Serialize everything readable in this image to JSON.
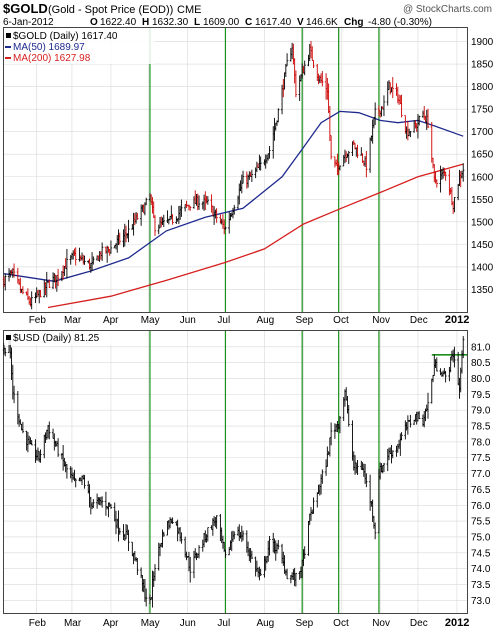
{
  "header": {
    "symbol": "$GOLD",
    "description": "(Gold - Spot Price (EOD))",
    "exchange": "CME",
    "watermark": "@ StockCharts.com",
    "date": "6-Jan-2012",
    "ohlc": [
      {
        "label": "O",
        "value": "1622.40"
      },
      {
        "label": "H",
        "value": "1632.30"
      },
      {
        "label": "L",
        "value": "1609.00"
      },
      {
        "label": "C",
        "value": "1617.40"
      },
      {
        "label": "V",
        "value": "146.6K"
      },
      {
        "label": "Chg",
        "value": "-4.80 (-0.30%)"
      }
    ]
  },
  "colors": {
    "ma50": "#1f2a8f",
    "ma200": "#d62020",
    "up_bar": "#000000",
    "down_bar": "#cc0000",
    "vline": "#1a8f1a",
    "grid": "#d9d9d9"
  },
  "chart_data": [
    {
      "type": "line",
      "style": "ohlc-bars",
      "legend": {
        "price": "$GOLD (Daily) 1617.40",
        "ma50": "MA(50) 1689.97",
        "ma200": "MA(200) 1627.98"
      },
      "month_labels": [
        "Feb",
        "Mar",
        "Apr",
        "May",
        "Jun",
        "Jul",
        "Aug",
        "Sep",
        "Oct",
        "Nov",
        "Dec",
        "2012"
      ],
      "y_ticks": [
        "1900",
        "1850",
        "1800",
        "1750",
        "1700",
        "1650",
        "1600",
        "1550",
        "1500",
        "1450",
        "1400",
        "1350"
      ],
      "ylim": [
        1300,
        1930
      ],
      "x_range": [
        "2011-01-06",
        "2012-01-09"
      ],
      "vertical_markers": [
        "2011-05-02",
        "2011-07-01",
        "2011-08-31",
        "2011-09-29",
        "2011-10-31"
      ],
      "series": [
        {
          "name": "$GOLD",
          "points": [
            [
              "2011-01-06",
              1372
            ],
            [
              "2011-01-13",
              1385
            ],
            [
              "2011-01-20",
              1345
            ],
            [
              "2011-01-27",
              1320
            ],
            [
              "2011-02-03",
              1340
            ],
            [
              "2011-02-10",
              1362
            ],
            [
              "2011-02-17",
              1378
            ],
            [
              "2011-02-24",
              1405
            ],
            [
              "2011-03-03",
              1425
            ],
            [
              "2011-03-10",
              1412
            ],
            [
              "2011-03-17",
              1403
            ],
            [
              "2011-03-24",
              1432
            ],
            [
              "2011-03-31",
              1438
            ],
            [
              "2011-04-07",
              1458
            ],
            [
              "2011-04-14",
              1475
            ],
            [
              "2011-04-21",
              1505
            ],
            [
              "2011-04-28",
              1535
            ],
            [
              "2011-05-02",
              1555
            ],
            [
              "2011-05-06",
              1490
            ],
            [
              "2011-05-13",
              1495
            ],
            [
              "2011-05-20",
              1505
            ],
            [
              "2011-05-27",
              1525
            ],
            [
              "2011-06-03",
              1540
            ],
            [
              "2011-06-10",
              1545
            ],
            [
              "2011-06-17",
              1540
            ],
            [
              "2011-06-24",
              1510
            ],
            [
              "2011-07-01",
              1485
            ],
            [
              "2011-07-08",
              1540
            ],
            [
              "2011-07-15",
              1590
            ],
            [
              "2011-07-22",
              1600
            ],
            [
              "2011-07-29",
              1625
            ],
            [
              "2011-08-05",
              1660
            ],
            [
              "2011-08-12",
              1745
            ],
            [
              "2011-08-19",
              1850
            ],
            [
              "2011-08-23",
              1890
            ],
            [
              "2011-08-26",
              1790
            ],
            [
              "2011-08-31",
              1830
            ],
            [
              "2011-09-06",
              1880
            ],
            [
              "2011-09-13",
              1820
            ],
            [
              "2011-09-20",
              1795
            ],
            [
              "2011-09-23",
              1640
            ],
            [
              "2011-09-27",
              1620
            ],
            [
              "2011-10-04",
              1650
            ],
            [
              "2011-10-11",
              1670
            ],
            [
              "2011-10-18",
              1640
            ],
            [
              "2011-10-21",
              1625
            ],
            [
              "2011-10-28",
              1740
            ],
            [
              "2011-11-04",
              1760
            ],
            [
              "2011-11-08",
              1800
            ],
            [
              "2011-11-15",
              1780
            ],
            [
              "2011-11-22",
              1700
            ],
            [
              "2011-11-29",
              1710
            ],
            [
              "2011-12-05",
              1740
            ],
            [
              "2011-12-09",
              1720
            ],
            [
              "2011-12-14",
              1590
            ],
            [
              "2011-12-19",
              1600
            ],
            [
              "2011-12-23",
              1610
            ],
            [
              "2011-12-29",
              1540
            ],
            [
              "2012-01-03",
              1600
            ],
            [
              "2012-01-06",
              1617.4
            ]
          ]
        },
        {
          "name": "MA(50)",
          "points": [
            [
              "2011-01-06",
              1385
            ],
            [
              "2011-02-15",
              1368
            ],
            [
              "2011-03-15",
              1390
            ],
            [
              "2011-04-15",
              1420
            ],
            [
              "2011-05-15",
              1480
            ],
            [
              "2011-06-15",
              1510
            ],
            [
              "2011-07-15",
              1530
            ],
            [
              "2011-08-15",
              1600
            ],
            [
              "2011-09-01",
              1665
            ],
            [
              "2011-09-15",
              1720
            ],
            [
              "2011-09-30",
              1745
            ],
            [
              "2011-10-15",
              1742
            ],
            [
              "2011-11-01",
              1725
            ],
            [
              "2011-11-15",
              1720
            ],
            [
              "2011-12-01",
              1725
            ],
            [
              "2011-12-15",
              1712
            ],
            [
              "2012-01-06",
              1690
            ]
          ]
        },
        {
          "name": "MA(200)",
          "points": [
            [
              "2011-02-10",
              1310
            ],
            [
              "2011-04-01",
              1335
            ],
            [
              "2011-05-15",
              1370
            ],
            [
              "2011-07-01",
              1410
            ],
            [
              "2011-08-01",
              1440
            ],
            [
              "2011-09-01",
              1495
            ],
            [
              "2011-10-01",
              1530
            ],
            [
              "2011-11-01",
              1565
            ],
            [
              "2011-12-01",
              1600
            ],
            [
              "2012-01-06",
              1628
            ]
          ]
        }
      ]
    },
    {
      "type": "line",
      "style": "ohlc-bars",
      "legend": {
        "price": "$USD (Daily) 81.25"
      },
      "month_labels": [
        "Feb",
        "Mar",
        "Apr",
        "May",
        "Jun",
        "Jul",
        "Aug",
        "Sep",
        "Oct",
        "Nov",
        "Dec",
        "2012"
      ],
      "y_ticks": [
        "81.0",
        "80.5",
        "80.0",
        "79.5",
        "79.0",
        "78.5",
        "78.0",
        "77.5",
        "77.0",
        "76.5",
        "76.0",
        "75.5",
        "75.0",
        "74.5",
        "74.0",
        "73.5",
        "73.0"
      ],
      "ylim": [
        72.6,
        81.5
      ],
      "x_range": [
        "2011-01-06",
        "2012-01-09"
      ],
      "vertical_markers": [
        "2011-05-02",
        "2011-07-01",
        "2011-08-31",
        "2011-09-29",
        "2011-10-31"
      ],
      "horizontal_marker": {
        "x_start": "2011-12-12",
        "x_end": "2012-01-09",
        "value": 80.75
      },
      "series": [
        {
          "name": "$USD",
          "points": [
            [
              "2011-01-06",
              80.9
            ],
            [
              "2011-01-10",
              81.2
            ],
            [
              "2011-01-13",
              79.6
            ],
            [
              "2011-01-20",
              78.4
            ],
            [
              "2011-01-27",
              77.8
            ],
            [
              "2011-02-03",
              77.5
            ],
            [
              "2011-02-10",
              78.5
            ],
            [
              "2011-02-17",
              77.8
            ],
            [
              "2011-02-24",
              77.2
            ],
            [
              "2011-03-03",
              76.7
            ],
            [
              "2011-03-10",
              76.8
            ],
            [
              "2011-03-17",
              76.0
            ],
            [
              "2011-03-24",
              76.1
            ],
            [
              "2011-03-31",
              76.0
            ],
            [
              "2011-04-07",
              75.3
            ],
            [
              "2011-04-14",
              75.0
            ],
            [
              "2011-04-21",
              74.2
            ],
            [
              "2011-04-28",
              73.2
            ],
            [
              "2011-05-02",
              72.9
            ],
            [
              "2011-05-06",
              74.1
            ],
            [
              "2011-05-13",
              75.2
            ],
            [
              "2011-05-20",
              75.6
            ],
            [
              "2011-05-27",
              75.0
            ],
            [
              "2011-06-03",
              74.0
            ],
            [
              "2011-06-10",
              74.6
            ],
            [
              "2011-06-17",
              75.2
            ],
            [
              "2011-06-24",
              75.6
            ],
            [
              "2011-07-01",
              74.3
            ],
            [
              "2011-07-08",
              75.2
            ],
            [
              "2011-07-15",
              75.0
            ],
            [
              "2011-07-22",
              74.3
            ],
            [
              "2011-07-29",
              73.7
            ],
            [
              "2011-08-05",
              74.8
            ],
            [
              "2011-08-12",
              74.6
            ],
            [
              "2011-08-19",
              73.8
            ],
            [
              "2011-08-26",
              73.7
            ],
            [
              "2011-08-31",
              74.1
            ],
            [
              "2011-09-06",
              75.6
            ],
            [
              "2011-09-13",
              76.5
            ],
            [
              "2011-09-20",
              77.5
            ],
            [
              "2011-09-23",
              78.3
            ],
            [
              "2011-09-29",
              78.6
            ],
            [
              "2011-10-04",
              79.6
            ],
            [
              "2011-10-11",
              77.2
            ],
            [
              "2011-10-18",
              77.2
            ],
            [
              "2011-10-25",
              76.0
            ],
            [
              "2011-10-28",
              75.2
            ],
            [
              "2011-10-31",
              77.0
            ],
            [
              "2011-11-07",
              77.6
            ],
            [
              "2011-11-14",
              77.8
            ],
            [
              "2011-11-21",
              78.4
            ],
            [
              "2011-11-28",
              78.8
            ],
            [
              "2011-12-05",
              78.7
            ],
            [
              "2011-12-09",
              79.2
            ],
            [
              "2011-12-14",
              80.4
            ],
            [
              "2011-12-19",
              80.3
            ],
            [
              "2011-12-23",
              80.0
            ],
            [
              "2011-12-29",
              80.8
            ],
            [
              "2012-01-03",
              79.7
            ],
            [
              "2012-01-06",
              81.25
            ]
          ]
        }
      ]
    }
  ]
}
